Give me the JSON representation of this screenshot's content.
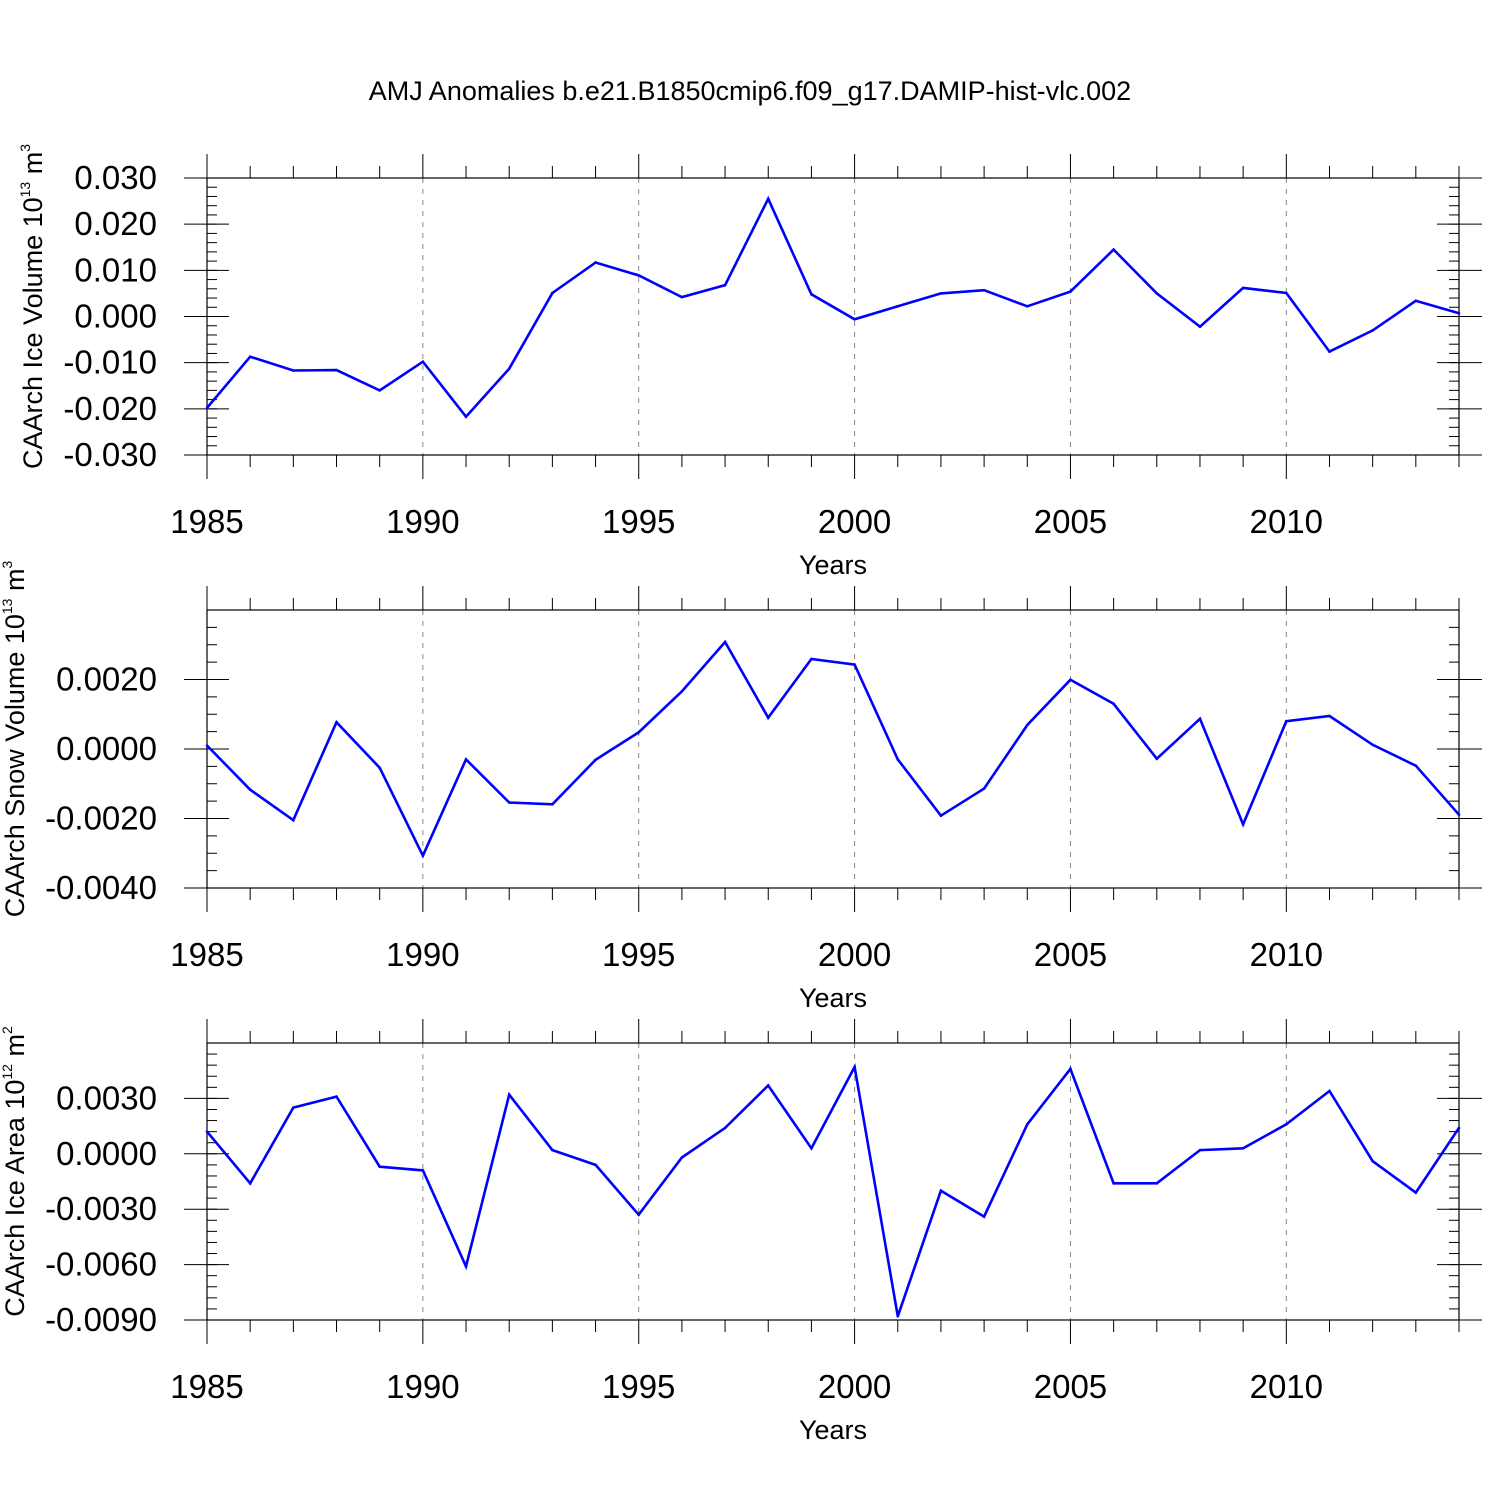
{
  "title": "AMJ Anomalies b.e21.B1850cmip6.f09_g17.DAMIP-hist-vlc.002",
  "colors": {
    "line": "#0000ff",
    "frame": "#000000",
    "grid": "#888888"
  },
  "chart_data": [
    {
      "type": "line",
      "xlabel": "Years",
      "ylabel": {
        "main": "CAArch Ice Volume 10",
        "exp": "13",
        "unit": " m",
        "unit_exp": "3"
      },
      "xlim": [
        1985,
        2014
      ],
      "ylim": [
        -0.03,
        0.03
      ],
      "xticks": [
        1985,
        1990,
        1995,
        2000,
        2005,
        2010
      ],
      "xtick_labels": [
        "1985",
        "1990",
        "1995",
        "2000",
        "2005",
        "2010"
      ],
      "yticks": [
        -0.03,
        -0.02,
        -0.01,
        0,
        0.01,
        0.02,
        0.03
      ],
      "ytick_labels": [
        "-0.030",
        "-0.020",
        "-0.010",
        "0.000",
        "0.010",
        "0.020",
        "0.030"
      ],
      "yminor_step": 0.002,
      "grid": "vertical dashed at major x ticks",
      "x": [
        1985,
        1986,
        1987,
        1988,
        1989,
        1990,
        1991,
        1992,
        1993,
        1994,
        1995,
        1996,
        1997,
        1998,
        1999,
        2000,
        2001,
        2002,
        2003,
        2004,
        2005,
        2006,
        2007,
        2008,
        2009,
        2010,
        2011,
        2012,
        2013,
        2014
      ],
      "series": [
        {
          "values": [
            -0.0198,
            -0.0087,
            -0.0117,
            -0.0116,
            -0.016,
            -0.0098,
            -0.0217,
            -0.0113,
            0.0051,
            0.0117,
            0.0089,
            0.0042,
            0.0068,
            0.0255,
            0.0048,
            -0.0006,
            0.0022,
            0.005,
            0.0057,
            0.0022,
            0.0054,
            0.0145,
            0.005,
            -0.0022,
            0.0062,
            0.0051,
            -0.0076,
            -0.003,
            0.0034,
            0.0007
          ]
        }
      ]
    },
    {
      "type": "line",
      "xlabel": "Years",
      "ylabel": {
        "main": "CAArch Snow Volume 10",
        "exp": "13",
        "unit": " m",
        "unit_exp": "3"
      },
      "xlim": [
        1985,
        2014
      ],
      "ylim": [
        -0.004,
        0.004
      ],
      "xticks": [
        1985,
        1990,
        1995,
        2000,
        2005,
        2010
      ],
      "xtick_labels": [
        "1985",
        "1990",
        "1995",
        "2000",
        "2005",
        "2010"
      ],
      "yticks": [
        -0.004,
        -0.002,
        0,
        0.002
      ],
      "ytick_labels": [
        "-0.0040",
        "-0.0020",
        "0.0000",
        "0.0020"
      ],
      "yminor_step": 0.0005,
      "grid": "vertical dashed at major x ticks",
      "x": [
        1985,
        1986,
        1987,
        1988,
        1989,
        1990,
        1991,
        1992,
        1993,
        1994,
        1995,
        1996,
        1997,
        1998,
        1999,
        2000,
        2001,
        2002,
        2003,
        2004,
        2005,
        2006,
        2007,
        2008,
        2009,
        2010,
        2011,
        2012,
        2013,
        2014
      ],
      "series": [
        {
          "values": [
            0.0001,
            -0.00117,
            -0.00205,
            0.00077,
            -0.00054,
            -0.00307,
            -0.0003,
            -0.00154,
            -0.00159,
            -0.00031,
            0.00048,
            0.00166,
            0.00308,
            0.0009,
            0.00259,
            0.00243,
            -0.0003,
            -0.00192,
            -0.00114,
            0.00069,
            0.00199,
            0.0013,
            -0.00028,
            0.00087,
            -0.00217,
            0.0008,
            0.00095,
            0.00012,
            -0.00048,
            -0.00189
          ]
        }
      ]
    },
    {
      "type": "line",
      "xlabel": "Years",
      "ylabel": {
        "main": "CAArch Ice Area 10",
        "exp": "12",
        "unit": " m",
        "unit_exp": "2"
      },
      "xlim": [
        1985,
        2014
      ],
      "ylim": [
        -0.009,
        0.006
      ],
      "xticks": [
        1985,
        1990,
        1995,
        2000,
        2005,
        2010
      ],
      "xtick_labels": [
        "1985",
        "1990",
        "1995",
        "2000",
        "2005",
        "2010"
      ],
      "yticks": [
        -0.009,
        -0.006,
        -0.003,
        0,
        0.003
      ],
      "ytick_labels": [
        "-0.0090",
        "-0.0060",
        "-0.0030",
        "0.0000",
        "0.0030"
      ],
      "yminor_step": 0.0006,
      "grid": "vertical dashed at major x ticks",
      "x": [
        1985,
        1986,
        1987,
        1988,
        1989,
        1990,
        1991,
        1992,
        1993,
        1994,
        1995,
        1996,
        1997,
        1998,
        1999,
        2000,
        2001,
        2002,
        2003,
        2004,
        2005,
        2006,
        2007,
        2008,
        2009,
        2010,
        2011,
        2012,
        2013,
        2014
      ],
      "series": [
        {
          "values": [
            0.0012,
            -0.0016,
            0.0025,
            0.0031,
            -0.0007,
            -0.0009,
            -0.0061,
            0.0032,
            0.0002,
            -0.0006,
            -0.0033,
            -0.0002,
            0.0014,
            0.0037,
            0.0003,
            0.0047,
            -0.0088,
            -0.002,
            -0.0034,
            0.0016,
            0.0046,
            -0.0016,
            -0.0016,
            0.0002,
            0.0003,
            0.0016,
            0.0034,
            -0.0004,
            -0.0021,
            0.0014
          ]
        }
      ]
    }
  ]
}
